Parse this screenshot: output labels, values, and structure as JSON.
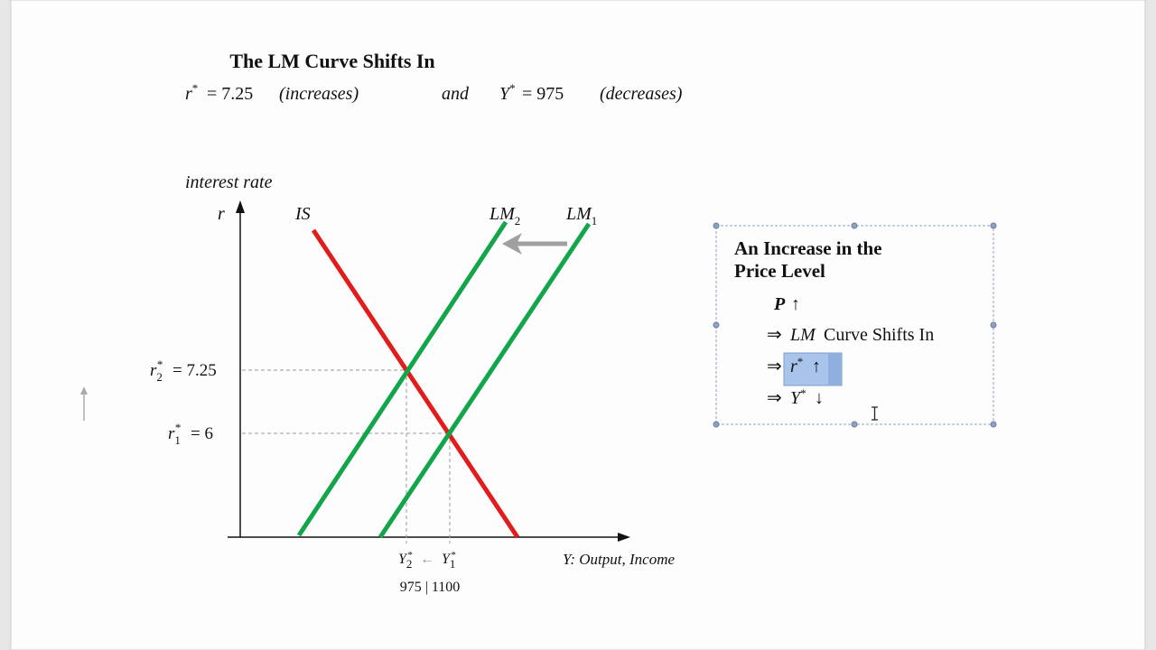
{
  "header": {
    "title": "The LM Curve Shifts In",
    "equation": {
      "r": "r",
      "r_star": "*",
      "r_value": "= 7.25",
      "r_note": "(increases)",
      "and": "and",
      "y": "Y",
      "y_star": "*",
      "y_value": "= 975",
      "y_note": "(decreases)"
    }
  },
  "diagram": {
    "y_axis_title": "interest rate",
    "y_axis_symbol": "r",
    "x_axis_title": "Y: Output, Income",
    "curves": [
      {
        "label": "IS"
      },
      {
        "label": "LM",
        "subscript": "2"
      },
      {
        "label": "LM",
        "subscript": "1"
      }
    ],
    "r_levels": [
      {
        "symbol": "r",
        "subscript": "2",
        "star": "*",
        "value": "= 7.25"
      },
      {
        "symbol": "r",
        "subscript": "1",
        "star": "*",
        "value": "= 6"
      }
    ],
    "y_levels": [
      {
        "symbol": "Y",
        "subscript": "2",
        "star": "*"
      },
      {
        "symbol": "Y",
        "subscript": "1",
        "star": "*"
      }
    ],
    "y_shift_arrow": "←",
    "y_values": "975 | 1100"
  },
  "text_box": {
    "heading": [
      "An Increase in the",
      "Price Level"
    ],
    "lines": [
      [
        "P",
        "↑"
      ],
      [
        "⇒",
        "LM",
        "Curve Shifts In"
      ],
      [
        "⇒",
        "r",
        "*",
        "↑"
      ],
      [
        "⇒",
        "Y",
        "*",
        "↓"
      ]
    ]
  }
}
